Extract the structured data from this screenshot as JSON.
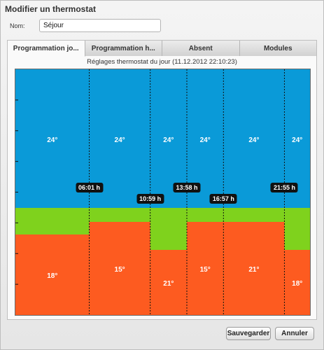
{
  "dialog": {
    "title": "Modifier un thermostat"
  },
  "name_field": {
    "label": "Nom:",
    "value": "Séjour"
  },
  "tabs": [
    {
      "label": "Programmation jo...",
      "active": true
    },
    {
      "label": "Programmation h...",
      "active": false
    },
    {
      "label": "Absent",
      "active": false
    },
    {
      "label": "Modules",
      "active": false
    }
  ],
  "chart_subtitle": "Réglages thermostat du jour (11.12.2012 22:10:23)",
  "colors": {
    "comfort": "#0a9ad8",
    "eco": "#7fd21d",
    "heat": "#fd5b20"
  },
  "chart_data": {
    "type": "area",
    "x_range": [
      "00:00",
      "24:00"
    ],
    "segments": [
      {
        "start": "00:00",
        "end": "06:01",
        "temperature": "18°"
      },
      {
        "start": "06:01",
        "end": "10:59",
        "temperature": "24°"
      },
      {
        "start": "10:59",
        "end": "13:58",
        "temperature": "15°"
      },
      {
        "start": "13:58",
        "end": "16:57",
        "temperature": "24°"
      },
      {
        "start": "16:57",
        "end": "21:55",
        "temperature": "21°"
      },
      {
        "start": "21:55",
        "end": "24:00",
        "temperature": "15°"
      }
    ],
    "upper_labels": [
      "24°",
      "24°",
      "24°",
      "24°",
      "24°",
      "24°"
    ],
    "lower_labels": [
      "18°",
      "15°",
      "21°",
      "15°",
      "21°",
      "18°"
    ],
    "time_markers": [
      "06:01 h",
      "10:59 h",
      "13:58 h",
      "16:57 h",
      "21:55 h"
    ]
  },
  "buttons": {
    "save": "Sauvegarder",
    "cancel": "Annuler"
  }
}
